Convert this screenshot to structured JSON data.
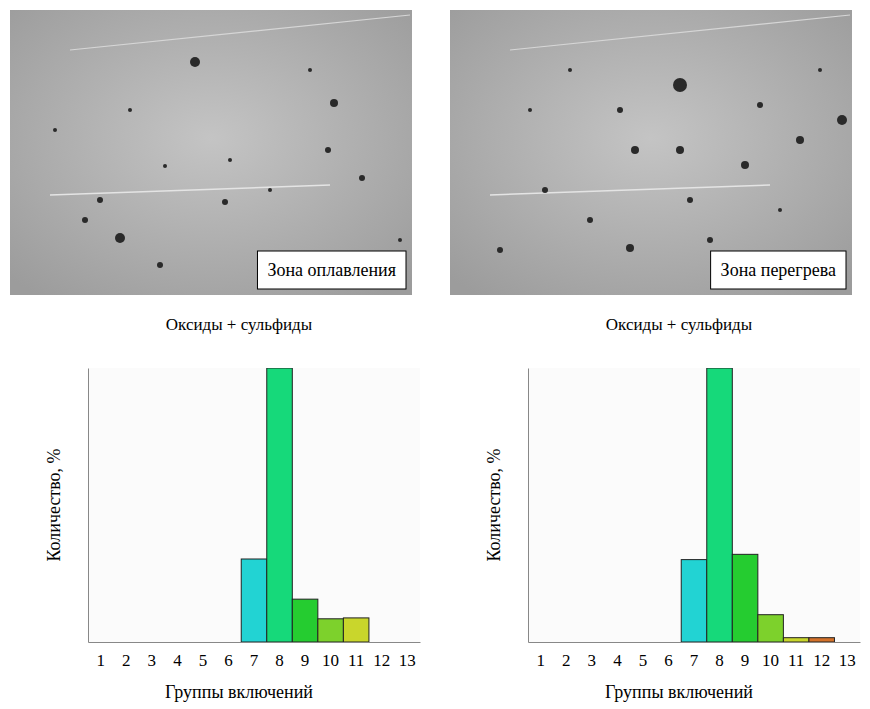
{
  "chart_data": [
    {
      "type": "bar",
      "title": "Оксиды + сульфиды",
      "annotations": [
        "Зона оплавления"
      ],
      "xlabel": "Группы включений",
      "ylabel": "Количество, %",
      "categories": [
        "1",
        "2",
        "3",
        "4",
        "5",
        "6",
        "7",
        "8",
        "9",
        "10",
        "11",
        "12",
        "13"
      ],
      "values": [
        0,
        0,
        0,
        0,
        0,
        0,
        18.6,
        61.4,
        9.6,
        5.2,
        5.4,
        0,
        0
      ],
      "colors": [
        "#2a5bd7",
        "#2a7ad7",
        "#2a98d7",
        "#22b4d7",
        "#22c4d4",
        "#22d0d0",
        "#22d3d3",
        "#16d97a",
        "#25cc30",
        "#7dd12c",
        "#c9d62c",
        "#d4722a",
        "#d44a2a"
      ],
      "ylim": [
        0,
        61.4
      ],
      "tick_labels": "x"
    },
    {
      "type": "bar",
      "title": "Оксиды + сульфиды",
      "annotations": [
        "Зона перегрева"
      ],
      "xlabel": "Группы включений",
      "ylabel": "Количество, %",
      "categories": [
        "1",
        "2",
        "3",
        "4",
        "5",
        "6",
        "7",
        "8",
        "9",
        "10",
        "11",
        "12",
        "13"
      ],
      "values": [
        0,
        0,
        0,
        0,
        0,
        0,
        17.2,
        57.2,
        18.3,
        5.7,
        0.9,
        0.9,
        0
      ],
      "colors": [
        "#2a5bd7",
        "#2a7ad7",
        "#2a98d7",
        "#22b4d7",
        "#22c4d4",
        "#22d0d0",
        "#22d3d3",
        "#16d97a",
        "#25cc30",
        "#7dd12c",
        "#c9d62c",
        "#d4722a",
        "#d44a2a"
      ],
      "ylim": [
        0,
        57.2
      ],
      "tick_labels": "x"
    }
  ]
}
